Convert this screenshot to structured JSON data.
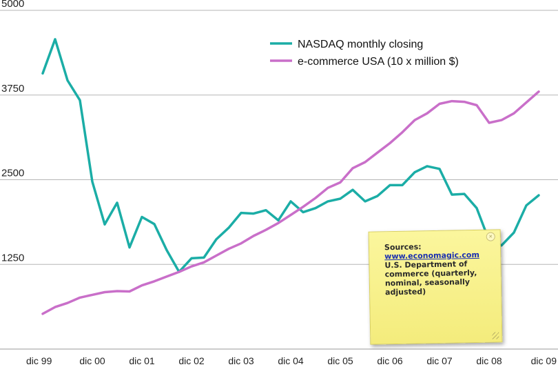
{
  "chart_data": {
    "type": "line",
    "title": "",
    "xlabel": "",
    "ylabel": "",
    "ylim": [
      0,
      5000
    ],
    "yticks": [
      1250,
      2500,
      3750,
      5000
    ],
    "ytick_labels": [
      "1250",
      "2500",
      "3750",
      "5000"
    ],
    "x_tick_labels": [
      "dic 99",
      "dic 00",
      "dic 01",
      "dic 02",
      "dic 03",
      "dic 04",
      "dic 05",
      "dic 06",
      "dic 07",
      "dic 08",
      "dic 09"
    ],
    "x_range": [
      0,
      40
    ],
    "grid": true,
    "legend_position": "top-right",
    "series": [
      {
        "name": "NASDAQ monthly closing",
        "color": "#1bada6",
        "values": [
          4069,
          4573,
          3966,
          3673,
          2470,
          1840,
          2160,
          1500,
          1950,
          1845,
          1460,
          1140,
          1340,
          1350,
          1620,
          1790,
          2010,
          2000,
          2050,
          1900,
          2180,
          2020,
          2080,
          2180,
          2220,
          2350,
          2180,
          2260,
          2420,
          2420,
          2610,
          2700,
          2660,
          2280,
          2290,
          2080,
          1600,
          1530,
          1720,
          2120,
          2270
        ]
      },
      {
        "name": "e-commerce USA (10 x million $)",
        "color": "#c96fc9",
        "values": [
          520,
          620,
          680,
          760,
          800,
          840,
          855,
          850,
          940,
          1000,
          1070,
          1140,
          1220,
          1280,
          1380,
          1480,
          1560,
          1670,
          1760,
          1860,
          1980,
          2100,
          2230,
          2380,
          2460,
          2670,
          2760,
          2900,
          3040,
          3200,
          3380,
          3480,
          3620,
          3660,
          3650,
          3600,
          3340,
          3380,
          3480,
          3640,
          3800
        ]
      }
    ]
  },
  "note": {
    "lines": [
      "Sources:",
      "www.economagic.com",
      "U.S. Department of",
      "commerce (quarterly,",
      "nominal, seasonally",
      "adjusted)"
    ]
  }
}
